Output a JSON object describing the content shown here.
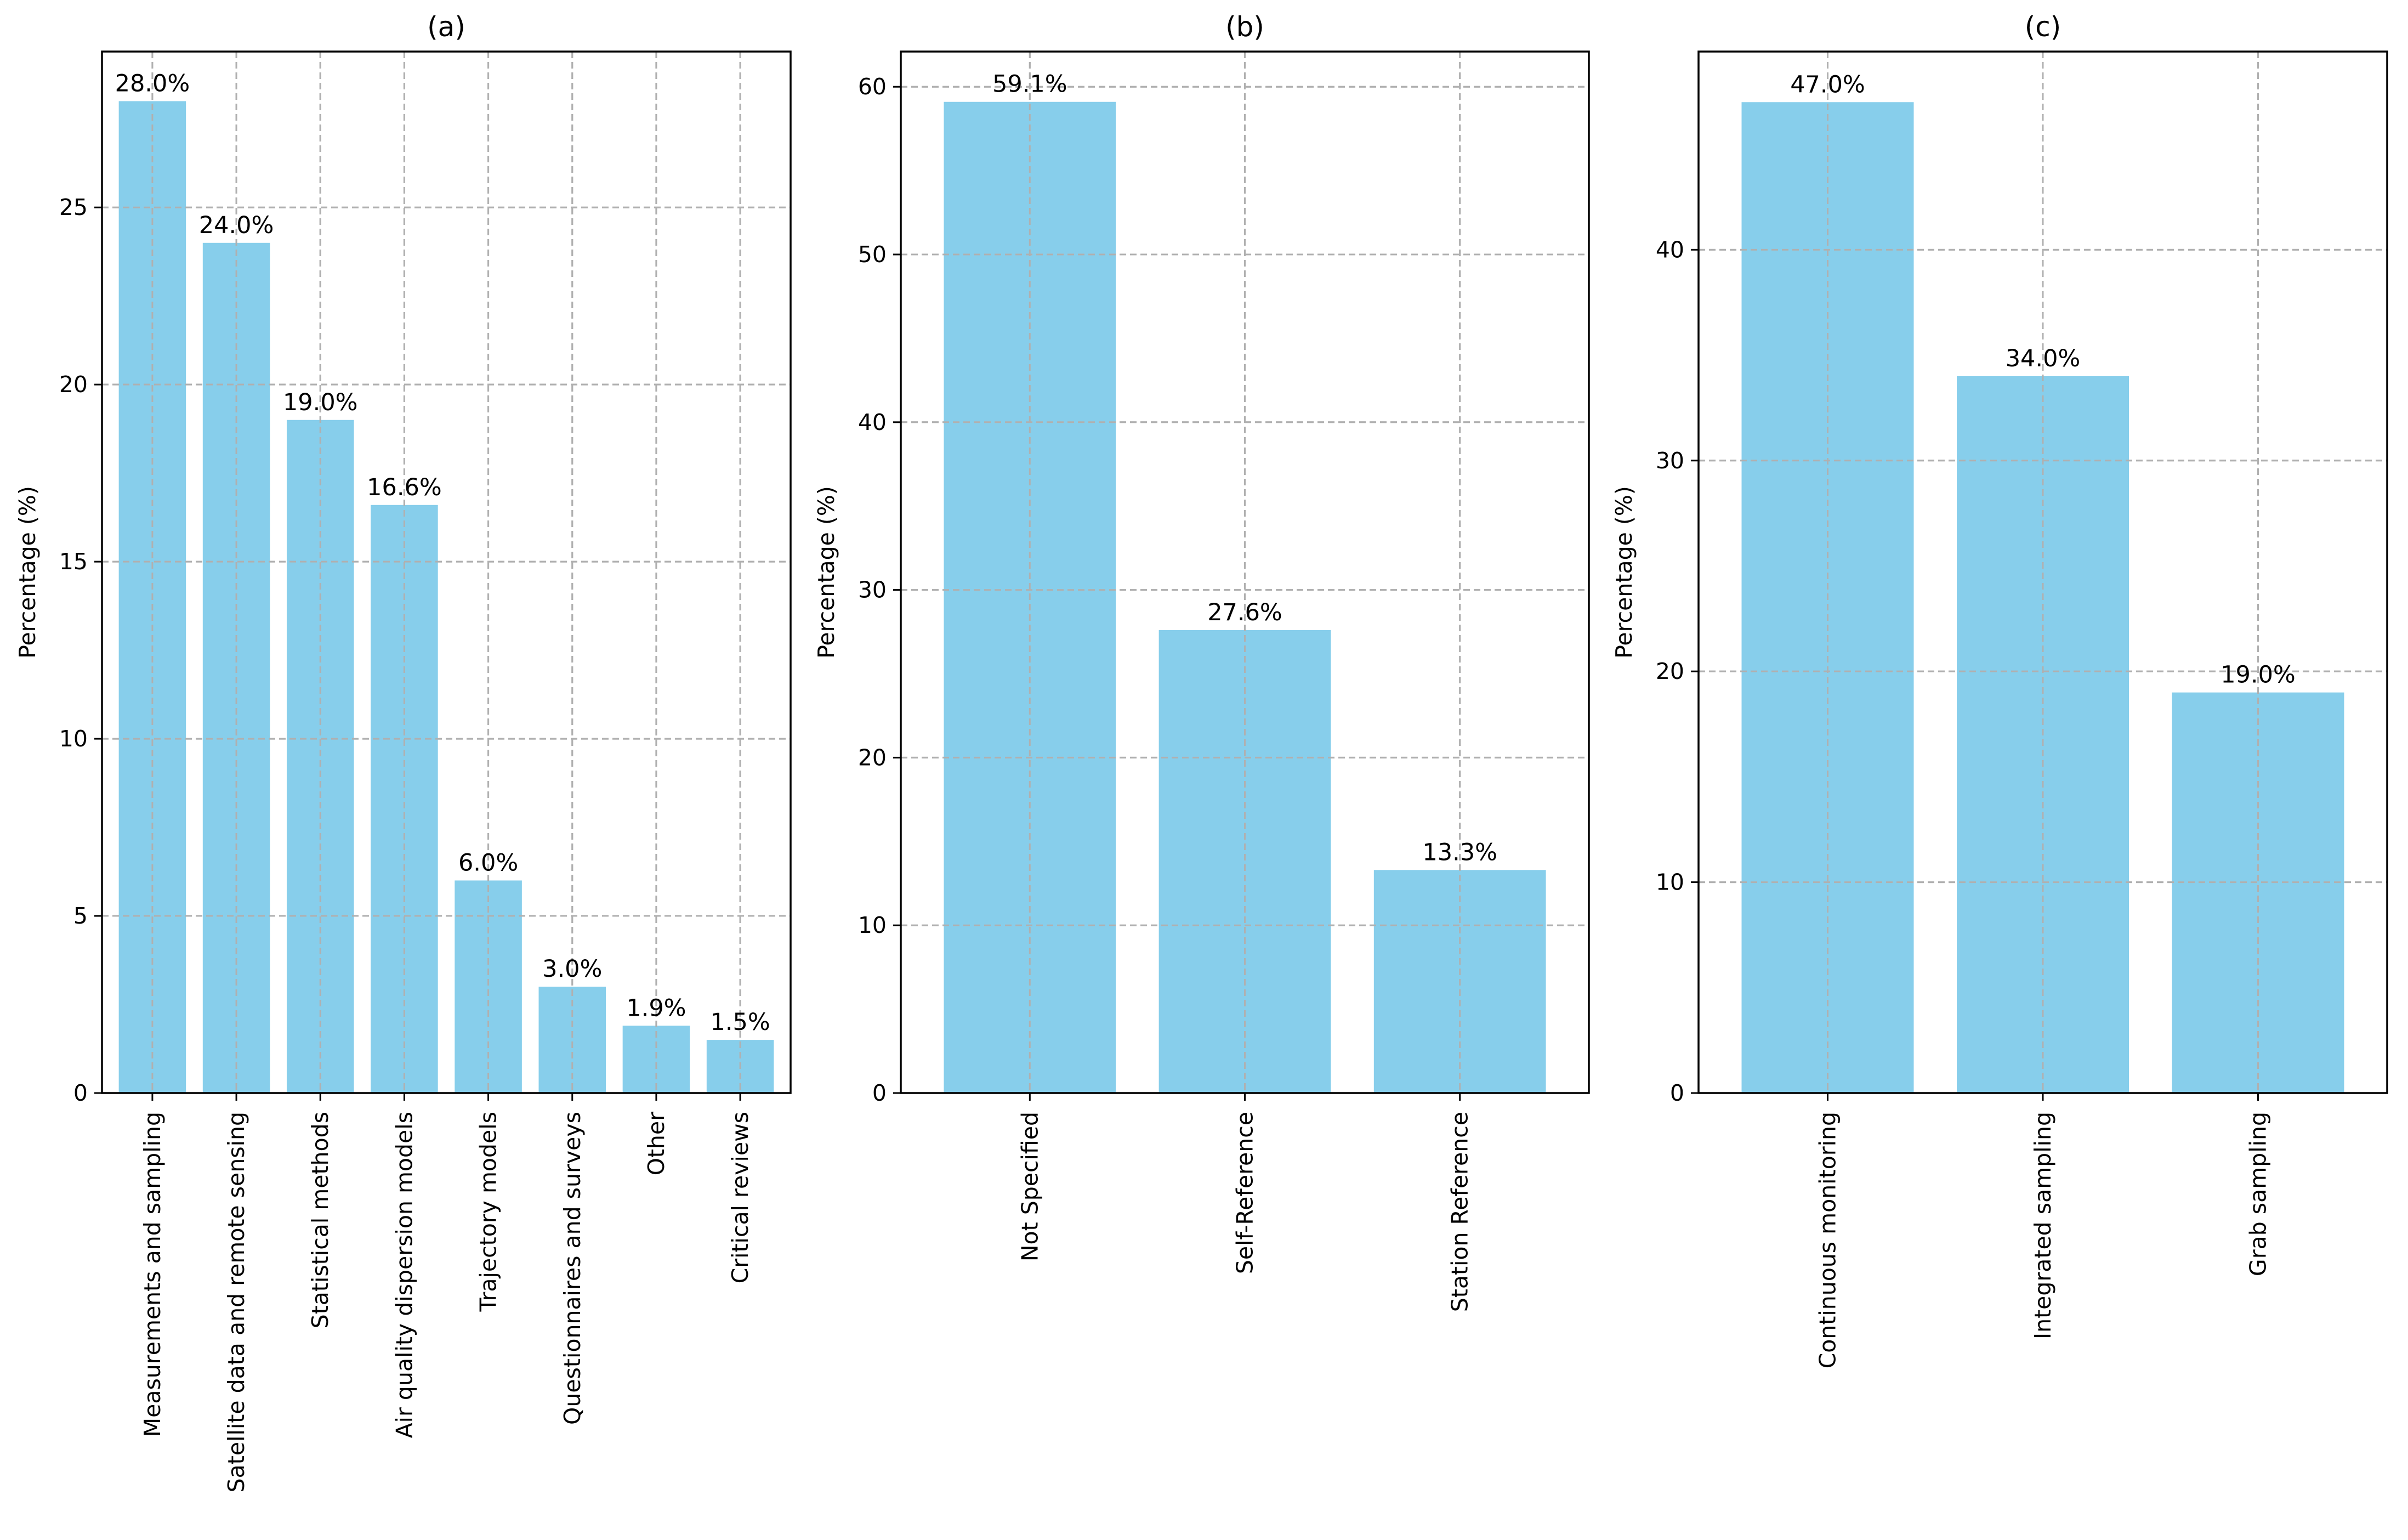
{
  "colors": {
    "bar": "#87CEEB",
    "grid": "#b0b0b0",
    "axis": "#000000"
  },
  "chart_data": [
    {
      "type": "bar",
      "title": "(a)",
      "ylabel": "Percentage (%)",
      "xlabel": "",
      "ylim": [
        0,
        29.4
      ],
      "yticks": [
        0,
        5,
        10,
        15,
        20,
        25
      ],
      "grid": true,
      "categories": [
        "Measurements and sampling",
        "Satellite data and remote sensing",
        "Statistical methods",
        "Air quality dispersion models",
        "Trajectory models",
        "Questionnaires and surveys",
        "Other",
        "Critical reviews"
      ],
      "values": [
        28.0,
        24.0,
        19.0,
        16.6,
        6.0,
        3.0,
        1.9,
        1.5
      ],
      "labels": [
        "28.0%",
        "24.0%",
        "19.0%",
        "16.6%",
        "6.0%",
        "3.0%",
        "1.9%",
        "1.5%"
      ]
    },
    {
      "type": "bar",
      "title": "(b)",
      "ylabel": "Percentage (%)",
      "xlabel": "",
      "ylim": [
        0,
        62.1
      ],
      "yticks": [
        0,
        10,
        20,
        30,
        40,
        50,
        60
      ],
      "grid": true,
      "categories": [
        "Not Specified",
        "Self-Reference",
        "Station Reference"
      ],
      "values": [
        59.1,
        27.6,
        13.3
      ],
      "labels": [
        "59.1%",
        "27.6%",
        "13.3%"
      ]
    },
    {
      "type": "bar",
      "title": "(c)",
      "ylabel": "Percentage (%)",
      "xlabel": "",
      "ylim": [
        0,
        49.4
      ],
      "yticks": [
        0,
        10,
        20,
        30,
        40
      ],
      "grid": true,
      "categories": [
        "Continuous monitoring",
        "Integrated sampling",
        "Grab sampling"
      ],
      "values": [
        47.0,
        34.0,
        19.0
      ],
      "labels": [
        "47.0%",
        "34.0%",
        "19.0%"
      ]
    }
  ]
}
